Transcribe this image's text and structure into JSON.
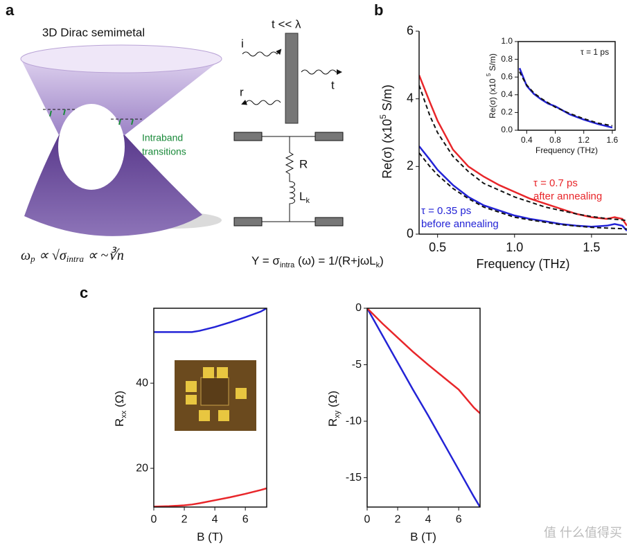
{
  "panel_labels": [
    "a",
    "b",
    "c"
  ],
  "diagram": {
    "title": "3D Dirac semimetal",
    "annotation": [
      "Intraband",
      "transitions"
    ],
    "formula": [
      "ω",
      "p",
      " ∝ √σ",
      "intra",
      " ∝ ~∛n"
    ],
    "circuit": {
      "condition": "t << λ",
      "incident": "i",
      "reflected": "r",
      "transmitted": "t",
      "resistor": "R",
      "inductor": [
        "L",
        "k"
      ],
      "equation": [
        "Y = σ",
        "intra",
        " (ω) = 1/(R+jωL",
        "k",
        ")"
      ]
    }
  },
  "chart_data": [
    {
      "type": "line",
      "xlabel": "Frequency (THz)",
      "ylabel": [
        "Re(σ) (x10",
        "5",
        " S/m)"
      ],
      "ylabel_script": "sup",
      "frame": "axes",
      "x": [
        0.38,
        0.45,
        0.5,
        0.6,
        0.7,
        0.8,
        0.9,
        1.0,
        1.1,
        1.2,
        1.3,
        1.4,
        1.5,
        1.6,
        1.65,
        1.7,
        1.73
      ],
      "series": [
        {
          "color": "#e8262a",
          "dashed": false,
          "values": [
            4.7,
            3.9,
            3.35,
            2.5,
            2.0,
            1.7,
            1.45,
            1.25,
            1.05,
            0.9,
            0.75,
            0.6,
            0.5,
            0.45,
            0.5,
            0.45,
            0.25
          ]
        },
        {
          "color": "#2323d6",
          "dashed": false,
          "values": [
            2.6,
            2.2,
            1.9,
            1.45,
            1.1,
            0.85,
            0.7,
            0.55,
            0.45,
            0.38,
            0.3,
            0.25,
            0.22,
            0.25,
            0.3,
            0.25,
            0.1
          ]
        },
        {
          "color": "#111111",
          "dashed": true,
          "values": [
            4.4,
            3.5,
            3.0,
            2.3,
            1.85,
            1.5,
            1.3,
            1.1,
            0.95,
            0.8,
            0.7,
            0.6,
            0.52,
            0.46,
            0.44,
            0.42,
            0.4
          ]
        },
        {
          "color": "#111111",
          "dashed": true,
          "values": [
            2.4,
            2.0,
            1.75,
            1.35,
            1.05,
            0.8,
            0.65,
            0.5,
            0.42,
            0.35,
            0.28,
            0.24,
            0.2,
            0.18,
            0.17,
            0.16,
            0.15
          ]
        }
      ],
      "annotations": [
        {
          "lines": [
            "τ = 0.7 ps",
            "after annealing"
          ],
          "color": "#e8262a"
        },
        {
          "lines": [
            "τ = 0.35 ps",
            "before annealing"
          ],
          "color": "#2323d6"
        }
      ],
      "xlim": [
        0.38,
        1.73
      ],
      "ylim": [
        0,
        6
      ],
      "xticks": [
        {
          "value": 0.5,
          "label": "0.5"
        },
        {
          "value": 1.0,
          "label": "1.0"
        },
        {
          "value": 1.5,
          "label": "1.5"
        }
      ],
      "yticks": [
        0,
        2,
        4,
        6
      ],
      "grid": false
    },
    {
      "type": "line",
      "xlabel": "Frequency (THz)",
      "ylabel": [
        "Re(σ) (x10 ",
        "5",
        " S/m)"
      ],
      "ylabel_script": "sup",
      "frame": "box",
      "x": [
        0.3,
        0.35,
        0.4,
        0.5,
        0.6,
        0.7,
        0.8,
        1.0,
        1.2,
        1.4,
        1.6
      ],
      "series": [
        {
          "color": "#2323d6",
          "dashed": false,
          "values": [
            0.7,
            0.6,
            0.5,
            0.41,
            0.35,
            0.3,
            0.27,
            0.18,
            0.12,
            0.07,
            0.03
          ]
        },
        {
          "color": "#111111",
          "dashed": true,
          "values": [
            0.66,
            0.58,
            0.51,
            0.42,
            0.36,
            0.31,
            0.26,
            0.19,
            0.13,
            0.08,
            0.05
          ]
        }
      ],
      "annotations": [
        {
          "lines": [
            "τ = 1 ps"
          ],
          "color": "#111111"
        }
      ],
      "xlim": [
        0.28,
        1.64
      ],
      "ylim": [
        0,
        1.0
      ],
      "xticks": [
        0.4,
        0.8,
        1.2,
        1.6
      ],
      "yticks": [
        {
          "value": 0,
          "label": "0.0"
        },
        0.2,
        0.4,
        0.6,
        0.8,
        {
          "value": 1.0,
          "label": "1.0"
        }
      ],
      "grid": false
    },
    {
      "type": "line",
      "xlabel": "B (T)",
      "ylabel": [
        "R",
        "xx",
        " (Ω)"
      ],
      "ylabel_script": "sub",
      "frame": "box",
      "x": [
        0,
        1,
        2,
        2.5,
        3,
        4,
        5,
        6,
        7,
        7.4
      ],
      "series": [
        {
          "color": "#2323d6",
          "dashed": false,
          "values": [
            52,
            52,
            52,
            52,
            52.3,
            53.2,
            54.3,
            55.5,
            56.8,
            57.6
          ]
        },
        {
          "color": "#e8262a",
          "dashed": false,
          "values": [
            11,
            11.1,
            11.3,
            11.5,
            11.8,
            12.5,
            13.2,
            14,
            14.9,
            15.3
          ]
        }
      ],
      "xlim": [
        0,
        7.4
      ],
      "ylim": [
        10.9,
        57.6
      ],
      "xticks": [
        0,
        2,
        4,
        6
      ],
      "yticks": [
        20,
        40
      ],
      "grid": false
    },
    {
      "type": "line",
      "xlabel": "B (T)",
      "ylabel": [
        "R",
        "xy",
        " (Ω)"
      ],
      "ylabel_script": "sub",
      "frame": "box",
      "x": [
        0,
        1,
        2,
        3,
        4,
        5,
        6,
        7,
        7.4
      ],
      "series": [
        {
          "color": "#2323d6",
          "dashed": false,
          "values": [
            0,
            -2.4,
            -4.8,
            -7.2,
            -9.5,
            -11.9,
            -14.3,
            -16.7,
            -17.6
          ]
        },
        {
          "color": "#e8262a",
          "dashed": false,
          "values": [
            0,
            -1.35,
            -2.6,
            -3.85,
            -5.0,
            -6.1,
            -7.2,
            -8.8,
            -9.3
          ]
        }
      ],
      "xlim": [
        0,
        7.4
      ],
      "ylim": [
        -17.6,
        0
      ],
      "xticks": [
        0,
        2,
        4,
        6
      ],
      "yticks": [
        0,
        -5,
        -10,
        -15
      ],
      "grid": false
    }
  ],
  "watermark": "值 什么值得买"
}
